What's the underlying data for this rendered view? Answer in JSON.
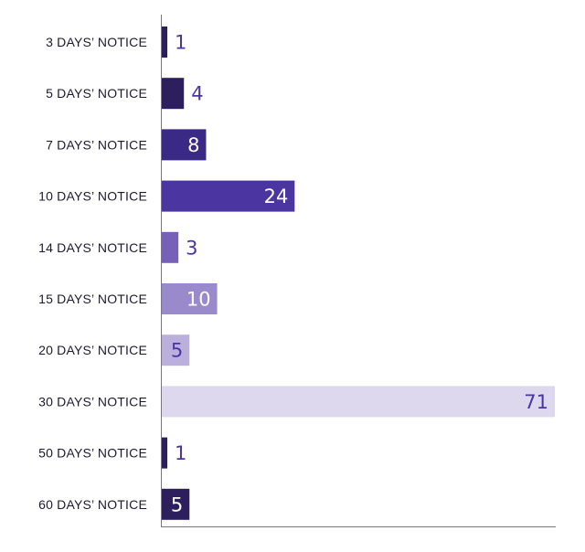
{
  "chart_data": {
    "type": "bar",
    "orientation": "horizontal",
    "categories": [
      "3 DAYS’ NOTICE",
      "5 DAYS’ NOTICE",
      "7 DAYS’ NOTICE",
      "10 DAYS’ NOTICE",
      "14 DAYS’ NOTICE",
      "15 DAYS’ NOTICE",
      "20 DAYS’ NOTICE",
      "30 DAYS’ NOTICE",
      "50 DAYS’ NOTICE",
      "60 DAYS’ NOTICE"
    ],
    "values": [
      1,
      4,
      8,
      24,
      3,
      10,
      5,
      71,
      1,
      5
    ],
    "colors": [
      "#2d1f5e",
      "#2d1f5e",
      "#3b2a85",
      "#4b35a0",
      "#7660b8",
      "#9a89cb",
      "#bbb0dc",
      "#ddd8ee",
      "#2d1f5e",
      "#2d1f5e"
    ],
    "label_colors": {
      "inside_dark_bar": "#ffffff",
      "inside_light_bar": "#4b35a0",
      "outside": "#4b35a0"
    },
    "xlim": [
      0,
      71
    ],
    "grid": false,
    "legend": "none"
  }
}
